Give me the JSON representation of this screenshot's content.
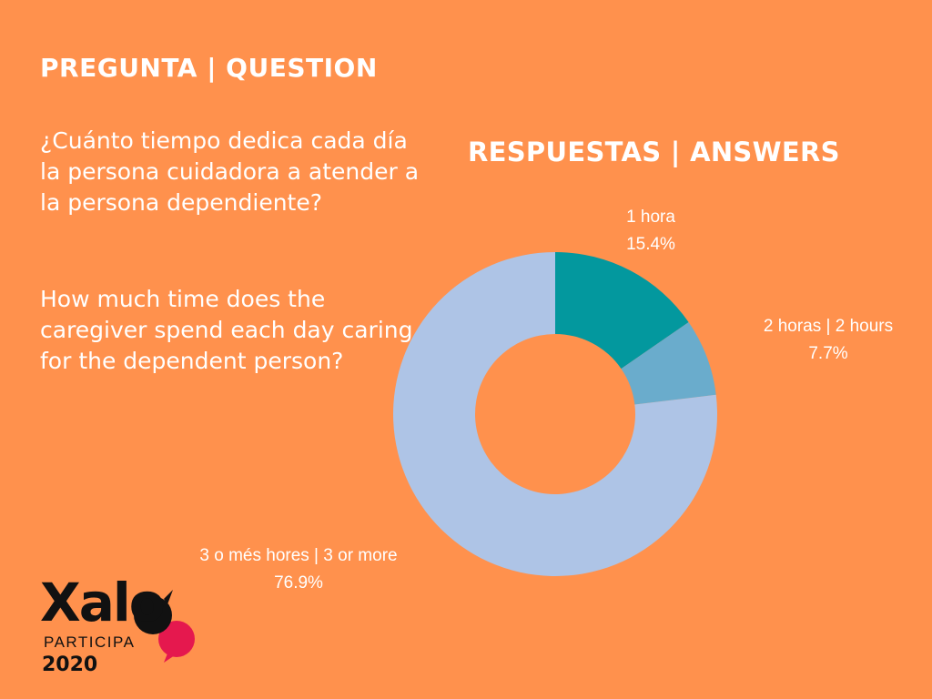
{
  "question": {
    "header": "PREGUNTA | QUESTION",
    "text_es": "¿Cuánto tiempo dedica cada día la persona cuidadora a atender a la persona dependiente?",
    "text_en": "How much time does the caregiver spend each day caring for the dependent person?"
  },
  "answers": {
    "header": "RESPUESTAS | ANSWERS"
  },
  "chart_data": {
    "type": "pie",
    "style": "donut",
    "categories": [
      "1 hora",
      "2 horas | 2 hours",
      "3 o més hores | 3 or more"
    ],
    "values": [
      15.4,
      7.7,
      76.9
    ],
    "value_labels": [
      "15.4%",
      "7.7%",
      "76.9%"
    ],
    "colors": [
      "#03989E",
      "#6AACCC",
      "#AEC4E6"
    ],
    "start": "top",
    "direction": "clockwise"
  },
  "logo": {
    "word": "Xalo",
    "sub": "PARTICIPA",
    "year": "2020",
    "colors": {
      "text": "#111111",
      "bubble_dark": "#111111",
      "bubble_accent": "#E5184E"
    }
  },
  "colors": {
    "background": "#FF914D",
    "text": "#FFFFFF"
  }
}
